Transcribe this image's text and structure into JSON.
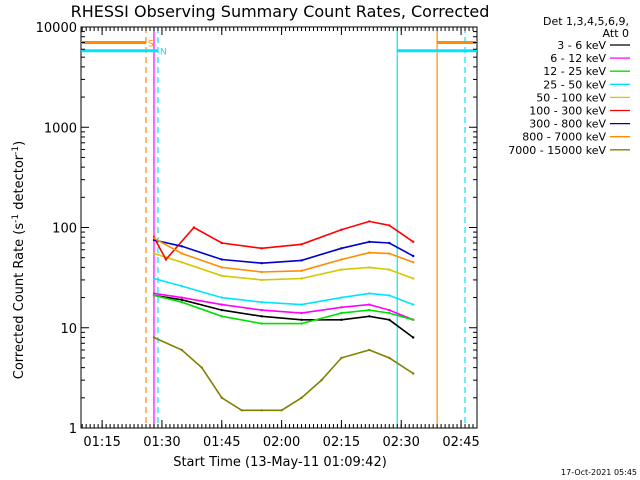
{
  "chart_data": {
    "type": "line",
    "title": "RHESSI Observing Summary Count Rates, Corrected",
    "xlabel": "Start Time (13-May-11 01:09:42)",
    "ylabel": "Corrected Count Rate (s⁻¹ detector⁻¹)",
    "ylabel_parts": {
      "pre": "Corrected Count Rate (s",
      "sup1": "-1",
      "mid": " detector",
      "sup2": "-1",
      "post": ")"
    },
    "yscale": "log",
    "xlim": [
      "01:09:42",
      "02:49:00"
    ],
    "ylim": [
      1,
      10000
    ],
    "xticks": [
      "01:15",
      "01:30",
      "01:45",
      "02:00",
      "02:15",
      "02:30",
      "02:45"
    ],
    "yticks": [
      "1",
      "10",
      "100",
      "1000",
      "10000"
    ],
    "legend_header": [
      "Det 1,3,4,5,6,9,",
      "Att 0"
    ],
    "legend_position": "right",
    "timestamp": "17-Oct-2021 05:45",
    "markers": {
      "lines": [
        {
          "time": "01:26:00",
          "style": "dashed",
          "color": "#ff8c00"
        },
        {
          "time": "01:28:00",
          "style": "solid",
          "color": "#ff00ff"
        },
        {
          "time": "01:29:00",
          "style": "dashed",
          "color": "#00e5ff"
        },
        {
          "time": "02:29:00",
          "style": "solid",
          "color": "#00e5ff"
        },
        {
          "time": "02:39:00",
          "style": "solid",
          "color": "#ff8c00"
        },
        {
          "time": "02:46:00",
          "style": "dashed",
          "color": "#00e5ff"
        }
      ],
      "bars": [
        {
          "label": "S",
          "color": "#ff8c00",
          "value": 7000,
          "segments": [
            [
              "01:09:42",
              "01:26:00"
            ],
            [
              "02:39:00",
              "02:49:00"
            ]
          ],
          "label_time": "01:26:30"
        },
        {
          "label": "N",
          "color": "#00e5ff",
          "value": 5800,
          "segments": [
            [
              "01:09:42",
              "01:29:00"
            ],
            [
              "02:29:00",
              "02:49:00"
            ]
          ],
          "label_time": "01:29:30"
        }
      ]
    },
    "series": [
      {
        "name": "3 - 6 keV",
        "color": "#000000",
        "x": [
          "01:28",
          "01:35",
          "01:45",
          "01:55",
          "02:05",
          "02:15",
          "02:22",
          "02:27",
          "02:33"
        ],
        "y": [
          21,
          19,
          15,
          13,
          12,
          12,
          13,
          12,
          8
        ]
      },
      {
        "name": "6 - 12 keV",
        "color": "#ff00ff",
        "x": [
          "01:28",
          "01:35",
          "01:45",
          "01:55",
          "02:05",
          "02:15",
          "02:22",
          "02:27",
          "02:33"
        ],
        "y": [
          22,
          20,
          17,
          15,
          14,
          16,
          17,
          15,
          12
        ]
      },
      {
        "name": "12 - 25 keV",
        "color": "#00e000",
        "x": [
          "01:28",
          "01:35",
          "01:45",
          "01:55",
          "02:05",
          "02:15",
          "02:22",
          "02:27",
          "02:33"
        ],
        "y": [
          21,
          18,
          13,
          11,
          11,
          14,
          15,
          14,
          12
        ]
      },
      {
        "name": "25 - 50 keV",
        "color": "#00e5ff",
        "x": [
          "01:28",
          "01:35",
          "01:45",
          "01:55",
          "02:05",
          "02:15",
          "02:22",
          "02:27",
          "02:33"
        ],
        "y": [
          31,
          26,
          20,
          18,
          17,
          20,
          22,
          21,
          17
        ]
      },
      {
        "name": "50 - 100 keV",
        "color": "#d4c800",
        "x": [
          "01:28",
          "01:35",
          "01:45",
          "01:55",
          "02:05",
          "02:15",
          "02:22",
          "02:27",
          "02:33"
        ],
        "y": [
          55,
          45,
          33,
          30,
          31,
          38,
          40,
          38,
          31
        ]
      },
      {
        "name": "100 - 300 keV",
        "color": "#ff0000",
        "x": [
          "01:28",
          "01:31",
          "01:38",
          "01:45",
          "01:55",
          "02:05",
          "02:15",
          "02:22",
          "02:27",
          "02:33"
        ],
        "y": [
          80,
          48,
          100,
          70,
          62,
          68,
          95,
          115,
          105,
          72
        ]
      },
      {
        "name": "300 - 800 keV",
        "color": "#0000cc",
        "x": [
          "01:28",
          "01:35",
          "01:45",
          "01:55",
          "02:05",
          "02:15",
          "02:22",
          "02:27",
          "02:33"
        ],
        "y": [
          75,
          65,
          48,
          44,
          47,
          62,
          72,
          70,
          52
        ]
      },
      {
        "name": "800 - 7000 keV",
        "color": "#ff8c00",
        "x": [
          "01:28",
          "01:35",
          "01:45",
          "01:55",
          "02:05",
          "02:15",
          "02:22",
          "02:27",
          "02:33"
        ],
        "y": [
          78,
          55,
          40,
          36,
          37,
          48,
          56,
          55,
          45
        ]
      },
      {
        "name": "7000 - 15000 keV",
        "color": "#808000",
        "x": [
          "01:28",
          "01:35",
          "01:40",
          "01:45",
          "01:50",
          "01:55",
          "02:00",
          "02:05",
          "02:10",
          "02:15",
          "02:22",
          "02:27",
          "02:33"
        ],
        "y": [
          8,
          6,
          4,
          2,
          1.5,
          1.5,
          1.5,
          2,
          3,
          5,
          6,
          5,
          3.5
        ]
      }
    ]
  }
}
